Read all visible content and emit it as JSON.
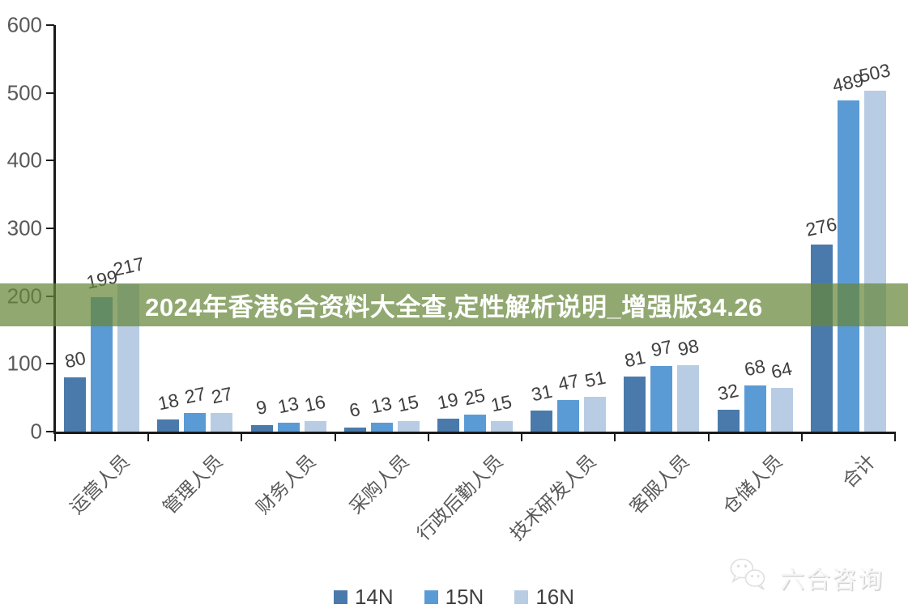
{
  "banner": {
    "text": "2024年香港6合资料大全查,定性解析说明_增强版34.26",
    "bg_color": "rgba(102,134,58,0.72)",
    "text_color": "#ffffff"
  },
  "chart_data": {
    "type": "bar",
    "categories": [
      "运营人员",
      "管理人员",
      "财务人员",
      "采购人员",
      "行政后勤人员",
      "技术研发人员",
      "客服人员",
      "仓储人员",
      "合计"
    ],
    "series": [
      {
        "name": "14N",
        "color": "#4a7aab",
        "values": [
          80,
          18,
          9,
          6,
          19,
          31,
          81,
          32,
          276
        ]
      },
      {
        "name": "15N",
        "color": "#5b9bd5",
        "values": [
          199,
          27,
          13,
          13,
          25,
          47,
          97,
          68,
          489
        ]
      },
      {
        "name": "16N",
        "color": "#b8cce4",
        "values": [
          217,
          27,
          16,
          15,
          15,
          51,
          98,
          64,
          503
        ]
      }
    ],
    "xlabel": "",
    "ylabel": "",
    "ylim": [
      0,
      600
    ],
    "yticks": [
      0,
      100,
      200,
      300,
      400,
      500,
      600
    ],
    "grid": false,
    "legend_position": "bottom",
    "data_labels": true
  },
  "legend": {
    "items": [
      {
        "label": "14N",
        "color": "#4a7aab"
      },
      {
        "label": "15N",
        "color": "#5b9bd5"
      },
      {
        "label": "16N",
        "color": "#b8cce4"
      }
    ]
  },
  "watermark": {
    "text": "六合咨询",
    "icon": "wechat-chat-bubbles-icon"
  },
  "colors": {
    "axis": "#1a1a1a",
    "tick_label": "#595959",
    "value_label": "#3f3f3f",
    "legend_label": "#404040",
    "banner_bg": "rgba(102,134,58,0.72)"
  }
}
